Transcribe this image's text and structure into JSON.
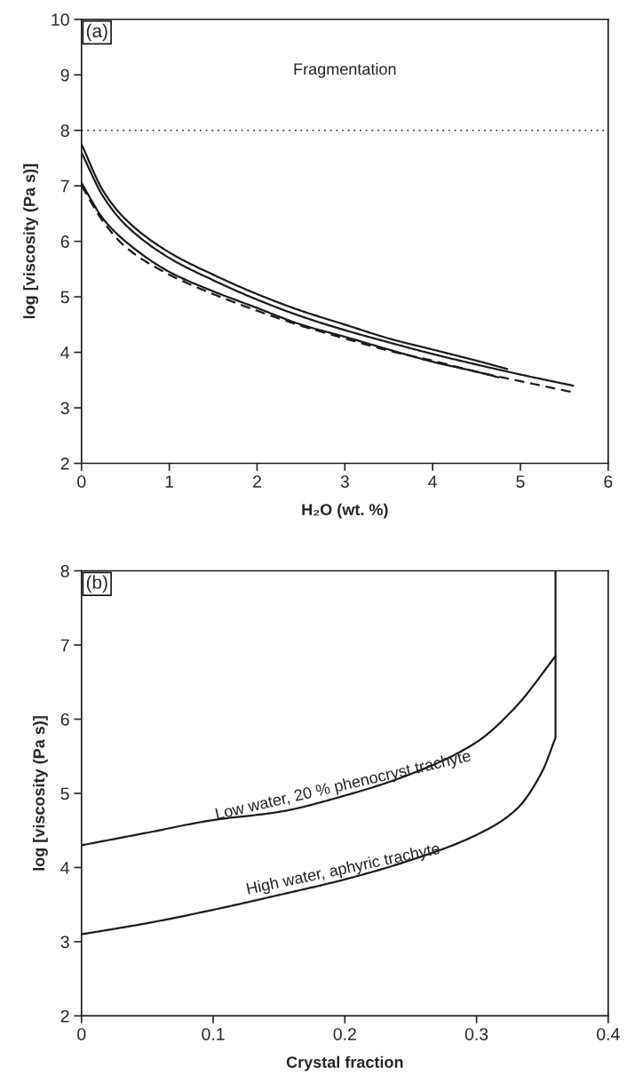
{
  "chart_data": [
    {
      "type": "line",
      "xlabel": "H₂O (wt. %)",
      "ylabel": "log [viscosity (Pa s)]",
      "xlim": [
        0,
        6
      ],
      "ylim": [
        2,
        10
      ],
      "xticks": [
        0,
        1,
        2,
        3,
        4,
        5,
        6
      ],
      "yticks": [
        2,
        3,
        4,
        5,
        6,
        7,
        8,
        9,
        10
      ],
      "grid": false,
      "legend": false,
      "series": [
        {
          "color": "#1a1a1a",
          "line_style": "solid",
          "x": [
            0,
            0.25,
            0.5,
            1,
            1.5,
            2,
            2.5,
            3,
            3.5,
            4,
            4.5,
            4.85
          ],
          "values": [
            7.75,
            6.9,
            6.4,
            5.8,
            5.4,
            5.05,
            4.75,
            4.5,
            4.25,
            4.05,
            3.85,
            3.7
          ]
        },
        {
          "color": "#1a1a1a",
          "line_style": "solid",
          "x": [
            0,
            0.25,
            0.5,
            1,
            1.5,
            2,
            2.5,
            3,
            3.5,
            4,
            4.5,
            5,
            5.6
          ],
          "values": [
            7.6,
            6.8,
            6.3,
            5.7,
            5.3,
            4.95,
            4.65,
            4.4,
            4.18,
            3.97,
            3.78,
            3.6,
            3.4
          ]
        },
        {
          "color": "#1a1a1a",
          "line_style": "solid",
          "x": [
            0,
            0.25,
            0.5,
            1,
            1.5,
            2,
            2.5,
            3,
            3.5,
            4,
            4.5,
            4.75
          ],
          "values": [
            7.05,
            6.4,
            6.0,
            5.45,
            5.1,
            4.8,
            4.5,
            4.28,
            4.05,
            3.83,
            3.65,
            3.55
          ]
        },
        {
          "color": "#1a1a1a",
          "line_style": "dashed",
          "x": [
            0,
            0.25,
            0.5,
            1,
            1.5,
            2,
            2.5,
            3,
            3.5,
            4,
            4.5,
            5,
            5.6
          ],
          "values": [
            7.0,
            6.35,
            5.9,
            5.4,
            5.05,
            4.75,
            4.48,
            4.25,
            4.03,
            3.85,
            3.65,
            3.48,
            3.28
          ]
        }
      ],
      "ref_lines": [
        {
          "axis": "y",
          "value": 8,
          "color": "#1a1a1a",
          "line_style": "dotted"
        }
      ],
      "annotations": [
        "(a)",
        "Fragmentation"
      ]
    },
    {
      "type": "line",
      "xlabel": "Crystal fraction",
      "ylabel": "log [viscosity (Pa s)]",
      "xlim": [
        0,
        0.4
      ],
      "ylim": [
        2,
        8
      ],
      "xticks": [
        0,
        0.1,
        0.2,
        0.3,
        0.4
      ],
      "yticks": [
        2,
        3,
        4,
        5,
        6,
        7,
        8
      ],
      "grid": false,
      "legend": false,
      "series": [
        {
          "color": "#1a1a1a",
          "line_style": "solid",
          "x": [
            0,
            0.05,
            0.1,
            0.15,
            0.2,
            0.25,
            0.3,
            0.33,
            0.36
          ],
          "values": [
            4.3,
            4.47,
            4.64,
            4.75,
            4.97,
            5.26,
            5.69,
            6.17,
            6.85
          ]
        },
        {
          "color": "#1a1a1a",
          "line_style": "solid",
          "x": [
            0,
            0.05,
            0.1,
            0.15,
            0.2,
            0.25,
            0.3,
            0.33,
            0.35,
            0.36,
            0.36
          ],
          "values": [
            3.1,
            3.25,
            3.43,
            3.63,
            3.84,
            4.1,
            4.44,
            4.78,
            5.3,
            5.75,
            8
          ]
        }
      ],
      "annotations": [
        "(b)",
        {
          "text": "Low water, 20 % phenocryst trachyte",
          "x": 0.2,
          "y": 5.0
        },
        {
          "text": "High water, aphyric trachyte",
          "x": 0.2,
          "y": 3.87
        }
      ]
    }
  ]
}
